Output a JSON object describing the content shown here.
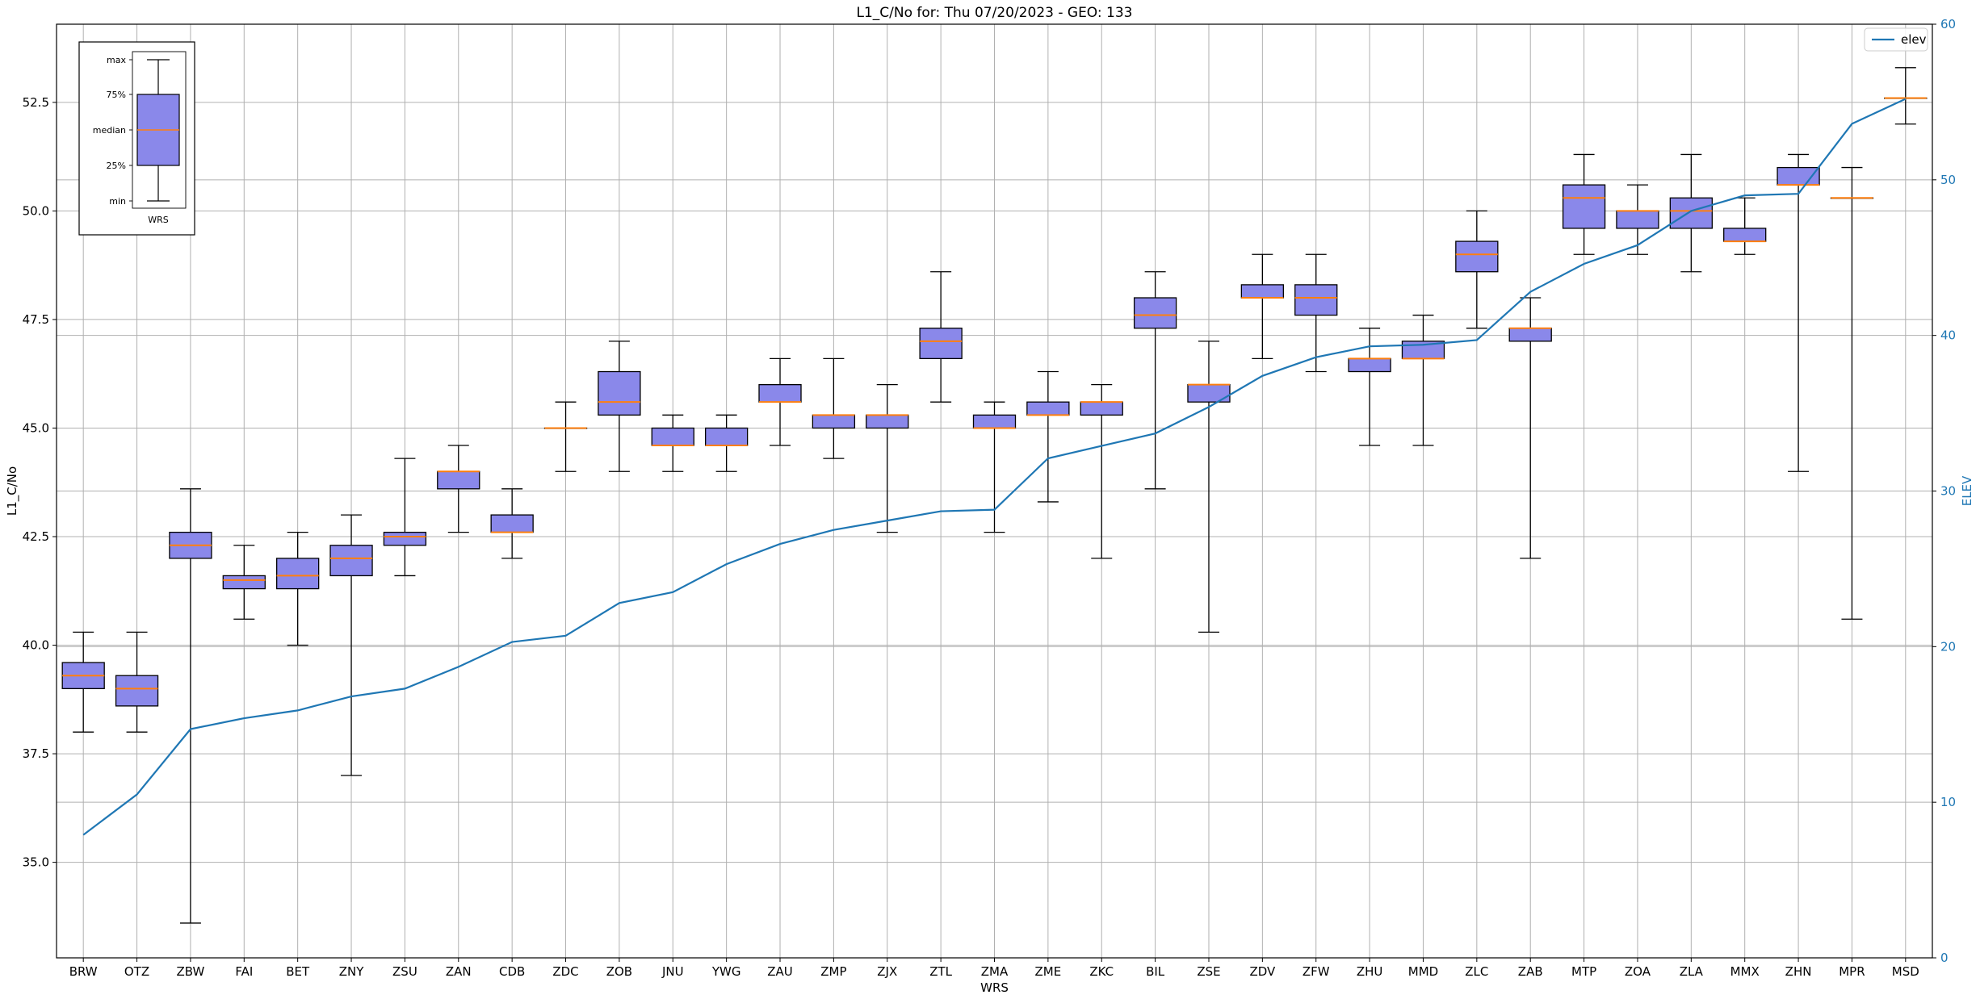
{
  "chart_data": {
    "type": "box",
    "title": "L1_C/No for: Thu 07/20/2023 - GEO: 133",
    "xlabel": "WRS",
    "ylabel": "L1_C/No",
    "y2label": "ELEV",
    "ylim": [
      32.8,
      54.3
    ],
    "y2lim": [
      0,
      60
    ],
    "yticks": [
      "35.0",
      "37.5",
      "40.0",
      "42.5",
      "45.0",
      "47.5",
      "50.0",
      "52.5"
    ],
    "y2ticks": [
      "0",
      "10",
      "20",
      "30",
      "40",
      "50",
      "60"
    ],
    "grid": true,
    "legend": {
      "position": "top-right",
      "entries": [
        {
          "name": "elev",
          "color": "#1f77b4"
        }
      ]
    },
    "colors": {
      "box_fill": "#8a88ea",
      "median": "#ff7f0e",
      "elev_line": "#1f77b4",
      "whisker": "#000000",
      "grid": "#b0b0b0"
    },
    "categories": [
      "BRW",
      "OTZ",
      "ZBW",
      "FAI",
      "BET",
      "ZNY",
      "ZSU",
      "ZAN",
      "CDB",
      "ZDC",
      "ZOB",
      "JNU",
      "YWG",
      "ZAU",
      "ZMP",
      "ZJX",
      "ZTL",
      "ZMA",
      "ZME",
      "ZKC",
      "BIL",
      "ZSE",
      "ZDV",
      "ZFW",
      "ZHU",
      "MMD",
      "ZLC",
      "ZAB",
      "MTP",
      "ZOA",
      "ZLA",
      "MMX",
      "ZHN",
      "MPR",
      "MSD"
    ],
    "boxes": [
      {
        "min": 38.0,
        "q1": 39.0,
        "median": 39.3,
        "q3": 39.6,
        "max": 40.3
      },
      {
        "min": 38.0,
        "q1": 38.6,
        "median": 39.0,
        "q3": 39.3,
        "max": 40.3
      },
      {
        "min": 33.6,
        "q1": 42.0,
        "median": 42.3,
        "q3": 42.6,
        "max": 43.6
      },
      {
        "min": 40.6,
        "q1": 41.3,
        "median": 41.5,
        "q3": 41.6,
        "max": 42.3
      },
      {
        "min": 40.0,
        "q1": 41.3,
        "median": 41.6,
        "q3": 42.0,
        "max": 42.6
      },
      {
        "min": 37.0,
        "q1": 41.6,
        "median": 42.0,
        "q3": 42.3,
        "max": 43.0
      },
      {
        "min": 41.6,
        "q1": 42.3,
        "median": 42.5,
        "q3": 42.6,
        "max": 44.3
      },
      {
        "min": 42.6,
        "q1": 43.6,
        "median": 44.0,
        "q3": 44.0,
        "max": 44.6
      },
      {
        "min": 42.0,
        "q1": 42.6,
        "median": 42.6,
        "q3": 43.0,
        "max": 43.6
      },
      {
        "min": 44.0,
        "q1": 45.0,
        "median": 45.0,
        "q3": 45.0,
        "max": 45.6
      },
      {
        "min": 44.0,
        "q1": 45.3,
        "median": 45.6,
        "q3": 46.3,
        "max": 47.0
      },
      {
        "min": 44.0,
        "q1": 44.6,
        "median": 44.6,
        "q3": 45.0,
        "max": 45.3
      },
      {
        "min": 44.0,
        "q1": 44.6,
        "median": 44.6,
        "q3": 45.0,
        "max": 45.3
      },
      {
        "min": 44.6,
        "q1": 45.6,
        "median": 45.6,
        "q3": 46.0,
        "max": 46.6
      },
      {
        "min": 44.3,
        "q1": 45.0,
        "median": 45.3,
        "q3": 45.3,
        "max": 46.6
      },
      {
        "min": 42.6,
        "q1": 45.0,
        "median": 45.3,
        "q3": 45.3,
        "max": 46.0
      },
      {
        "min": 45.6,
        "q1": 46.6,
        "median": 47.0,
        "q3": 47.3,
        "max": 48.6
      },
      {
        "min": 42.6,
        "q1": 45.0,
        "median": 45.0,
        "q3": 45.3,
        "max": 45.6
      },
      {
        "min": 43.3,
        "q1": 45.3,
        "median": 45.3,
        "q3": 45.6,
        "max": 46.3
      },
      {
        "min": 42.0,
        "q1": 45.3,
        "median": 45.6,
        "q3": 45.6,
        "max": 46.0
      },
      {
        "min": 43.6,
        "q1": 47.3,
        "median": 47.6,
        "q3": 48.0,
        "max": 48.6
      },
      {
        "min": 40.3,
        "q1": 45.6,
        "median": 46.0,
        "q3": 46.0,
        "max": 47.0
      },
      {
        "min": 46.6,
        "q1": 48.0,
        "median": 48.0,
        "q3": 48.3,
        "max": 49.0
      },
      {
        "min": 46.3,
        "q1": 47.6,
        "median": 48.0,
        "q3": 48.3,
        "max": 49.0
      },
      {
        "min": 44.6,
        "q1": 46.3,
        "median": 46.6,
        "q3": 46.6,
        "max": 47.3
      },
      {
        "min": 44.6,
        "q1": 46.6,
        "median": 46.6,
        "q3": 47.0,
        "max": 47.6
      },
      {
        "min": 47.3,
        "q1": 48.6,
        "median": 49.0,
        "q3": 49.3,
        "max": 50.0
      },
      {
        "min": 42.0,
        "q1": 47.0,
        "median": 47.3,
        "q3": 47.3,
        "max": 48.0
      },
      {
        "min": 49.0,
        "q1": 49.6,
        "median": 50.3,
        "q3": 50.6,
        "max": 51.3
      },
      {
        "min": 49.0,
        "q1": 49.6,
        "median": 50.0,
        "q3": 50.0,
        "max": 50.6
      },
      {
        "min": 48.6,
        "q1": 49.6,
        "median": 50.0,
        "q3": 50.3,
        "max": 51.3
      },
      {
        "min": 49.0,
        "q1": 49.3,
        "median": 49.3,
        "q3": 49.6,
        "max": 50.3
      },
      {
        "min": 44.0,
        "q1": 50.6,
        "median": 50.6,
        "q3": 51.0,
        "max": 51.3
      },
      {
        "min": 40.6,
        "q1": 50.3,
        "median": 50.3,
        "q3": 50.3,
        "max": 51.0
      },
      {
        "min": 52.0,
        "q1": 52.6,
        "median": 52.6,
        "q3": 52.6,
        "max": 53.3
      }
    ],
    "series": [
      {
        "name": "elev",
        "axis": "right",
        "values": [
          7.9,
          10.5,
          14.7,
          15.4,
          15.9,
          16.8,
          17.3,
          18.7,
          20.3,
          20.7,
          22.8,
          23.5,
          25.3,
          26.6,
          27.5,
          28.1,
          28.7,
          28.8,
          32.1,
          32.9,
          33.7,
          35.4,
          37.4,
          38.6,
          39.3,
          39.4,
          39.7,
          42.8,
          44.6,
          45.8,
          48.0,
          49.0,
          49.1,
          53.6,
          55.2
        ]
      }
    ],
    "inset_legend": {
      "labels": [
        "max",
        "75%",
        "median",
        "25%",
        "min"
      ],
      "category": "WRS"
    }
  }
}
